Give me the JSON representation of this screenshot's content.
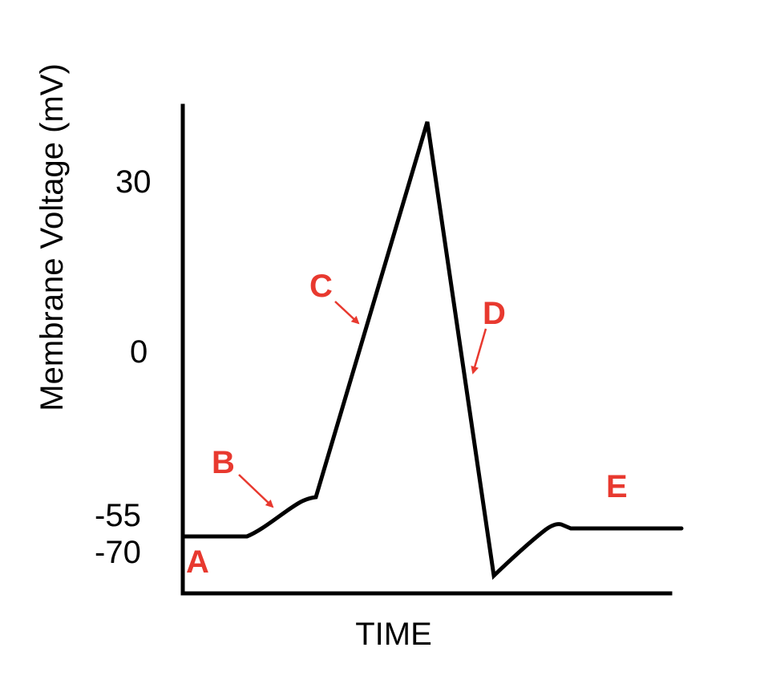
{
  "diagram": {
    "y_axis_title": "Membrane Voltage (mV)",
    "x_axis_title": "TIME",
    "y_ticks": [
      {
        "id": "30",
        "label": "30"
      },
      {
        "id": "0",
        "label": "0"
      },
      {
        "id": "-55",
        "label": "-55"
      },
      {
        "id": "-70",
        "label": "-70"
      }
    ],
    "phase_labels": [
      {
        "id": "a",
        "label": "A"
      },
      {
        "id": "b",
        "label": "B"
      },
      {
        "id": "c",
        "label": "C"
      },
      {
        "id": "d",
        "label": "D"
      },
      {
        "id": "e",
        "label": "E"
      }
    ],
    "colors": {
      "trace": "#000000",
      "labels": "#e8392f"
    }
  }
}
